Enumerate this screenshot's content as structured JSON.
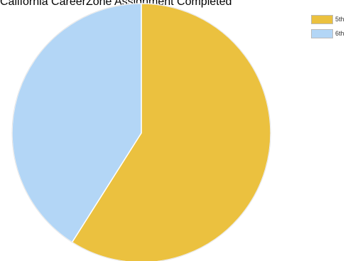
{
  "chart_data": {
    "type": "pie",
    "title": "California CareerZone Assignment Completed",
    "categories": [
      "5th",
      "6th"
    ],
    "values": [
      59,
      41
    ],
    "colors": [
      "#ebc13f",
      "#b3d6f6"
    ],
    "legend": "top-right"
  }
}
